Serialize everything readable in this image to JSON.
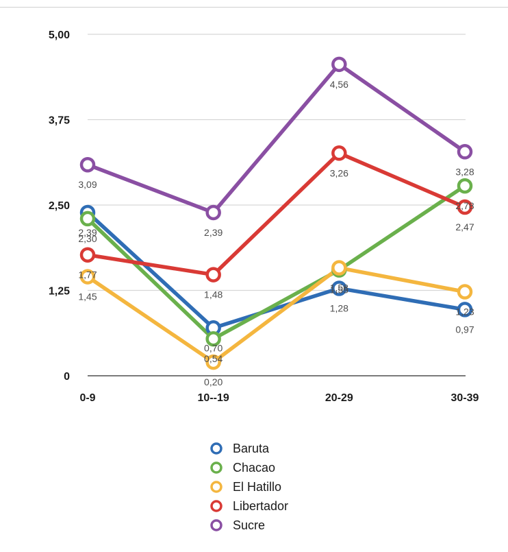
{
  "chart_data": {
    "type": "line",
    "categories": [
      "0-9",
      "10--19",
      "20-29",
      "30-39"
    ],
    "ylim": [
      0,
      5
    ],
    "yticks": [
      0,
      1.25,
      2.5,
      3.75,
      5
    ],
    "ytick_labels": [
      "0",
      "1,25",
      "2,50",
      "3,75",
      "5,00"
    ],
    "grid": true,
    "legend_position": "bottom",
    "series": [
      {
        "name": "Baruta",
        "color": "#2f6db5",
        "values": [
          2.39,
          0.7,
          1.28,
          0.97
        ],
        "labels": [
          "2,39",
          "0,70",
          "1,28",
          "0,97"
        ]
      },
      {
        "name": "Chacao",
        "color": "#6ab04c",
        "values": [
          2.3,
          0.54,
          1.55,
          2.78
        ],
        "labels": [
          "2,30",
          "0,54",
          "1,55",
          "2,78"
        ]
      },
      {
        "name": "El Hatillo",
        "color": "#f4b63f",
        "values": [
          1.45,
          0.2,
          1.58,
          1.23
        ],
        "labels": [
          "1,45",
          "0,20",
          "1,58",
          "1,23"
        ]
      },
      {
        "name": "Libertador",
        "color": "#d93a35",
        "values": [
          1.77,
          1.48,
          3.26,
          2.47
        ],
        "labels": [
          "1,77",
          "1,48",
          "3,26",
          "2,47"
        ]
      },
      {
        "name": "Sucre",
        "color": "#8a4fa3",
        "values": [
          3.09,
          2.39,
          4.56,
          3.28
        ],
        "labels": [
          "3,09",
          "2,39",
          "4,56",
          "3,28"
        ]
      }
    ]
  }
}
